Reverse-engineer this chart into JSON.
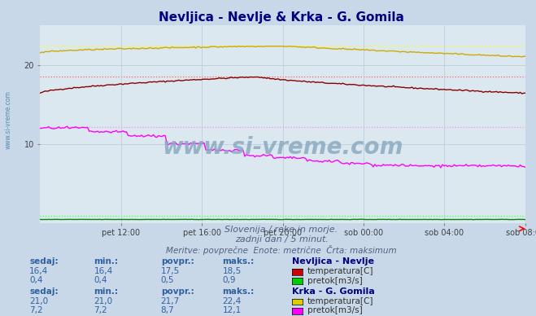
{
  "title_part1": "Nevljica - Nevlje",
  "title_part2": " & Krka - G. Gomila",
  "bg_color": "#c8d8e8",
  "plot_bg_color": "#dce8f0",
  "grid_color": "#b8c8d8",
  "subtitle1": "Slovenija / reke in morje.",
  "subtitle2": "zadnji dan / 5 minut.",
  "subtitle3": "Meritve: povprečne  Enote: metrične  Črta: maksimum",
  "xlabel_ticks": [
    "pet 12:00",
    "pet 16:00",
    "pet 20:00",
    "sob 00:00",
    "sob 04:00",
    "sob 08:00"
  ],
  "ymin": 0,
  "ymax": 25,
  "ytick_vals": [
    10,
    20
  ],
  "n_points": 288,
  "watermark": "www.si-vreme.com",
  "watermark_color": "#8aaac0",
  "sidebar_text": "www.si-vreme.com",
  "sidebar_color": "#3878a0",
  "nevljica_temp_color": "#880000",
  "nevljica_temp_max_color": "#ff6060",
  "nevljica_temp_max": 18.5,
  "nevljica_pretok_color": "#008800",
  "nevljica_pretok_max_color": "#44ff44",
  "nevljica_pretok_max": 0.9,
  "krka_temp_color": "#ccaa00",
  "krka_temp_max_color": "#ffff00",
  "krka_temp_max": 22.4,
  "krka_pretok_color": "#ff00ff",
  "krka_pretok_max_color": "#ff88ff",
  "krka_pretok_max": 12.1,
  "header_color": "#3060a0",
  "value_color": "#3060a0",
  "station_color": "#000080",
  "label_color": "#303030",
  "table_headers": [
    "sedaj:",
    "min.:",
    "povpr.:",
    "maks.:"
  ],
  "nevljica_temp_vals": [
    "16,4",
    "16,4",
    "17,5",
    "18,5"
  ],
  "nevljica_pretok_vals": [
    "0,4",
    "0,4",
    "0,5",
    "0,9"
  ],
  "krka_temp_vals": [
    "21,0",
    "21,0",
    "21,7",
    "22,4"
  ],
  "krka_pretok_vals": [
    "7,2",
    "7,2",
    "8,7",
    "12,1"
  ],
  "nevljica_temp_legend_box": "#cc0000",
  "nevljica_pretok_legend_box": "#00cc00",
  "krka_temp_legend_box": "#ddcc00",
  "krka_pretok_legend_box": "#ff00ff",
  "station1_name": "Nevljica - Nevlje",
  "station2_name": "Krka - G. Gomila",
  "temp_label": "temperatura[C]",
  "pretok_label": "pretok[m3/s]"
}
